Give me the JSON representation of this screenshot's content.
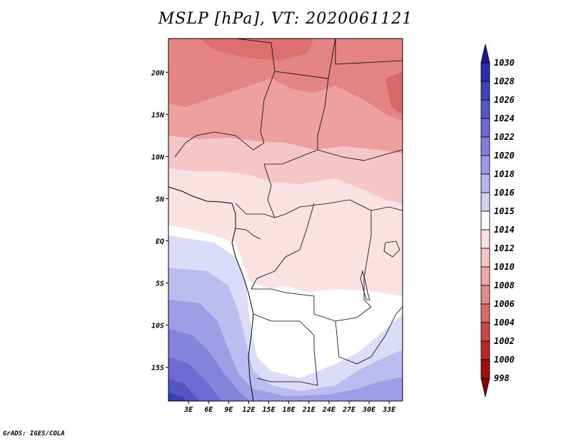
{
  "title": "MSLP [hPa], VT: 2020061121",
  "credit": "GrADS: IGES/COLA",
  "map": {
    "lon_range": [
      0,
      35
    ],
    "lat_range": [
      -19,
      24
    ],
    "lon_ticks": [
      "3E",
      "6E",
      "9E",
      "12E",
      "15E",
      "18E",
      "21E",
      "24E",
      "27E",
      "30E",
      "33E"
    ],
    "lon_values": [
      3,
      6,
      9,
      12,
      15,
      18,
      21,
      24,
      27,
      30,
      33
    ],
    "lat_ticks": [
      "20N",
      "15N",
      "10N",
      "5N",
      "EQ",
      "5S",
      "10S",
      "15S"
    ],
    "lat_values": [
      20,
      15,
      10,
      5,
      0,
      -5,
      -10,
      -15
    ]
  },
  "colorbar": {
    "labels": [
      "1030",
      "1028",
      "1026",
      "1024",
      "1022",
      "1020",
      "1018",
      "1016",
      "1015",
      "1014",
      "1012",
      "1010",
      "1008",
      "1006",
      "1004",
      "1002",
      "1000",
      "998"
    ],
    "colors": [
      "#1a1a99",
      "#2e2ea8",
      "#4040b8",
      "#5555c6",
      "#6a6ad2",
      "#8080dc",
      "#9a9ae6",
      "#b6b6ee",
      "#d2d2f6",
      "#ffffff",
      "#fbe0e0",
      "#f6c4c4",
      "#eea8a8",
      "#e48a8a",
      "#d86a6a",
      "#c84848",
      "#b62828",
      "#a01010",
      "#8a0000"
    ]
  }
}
